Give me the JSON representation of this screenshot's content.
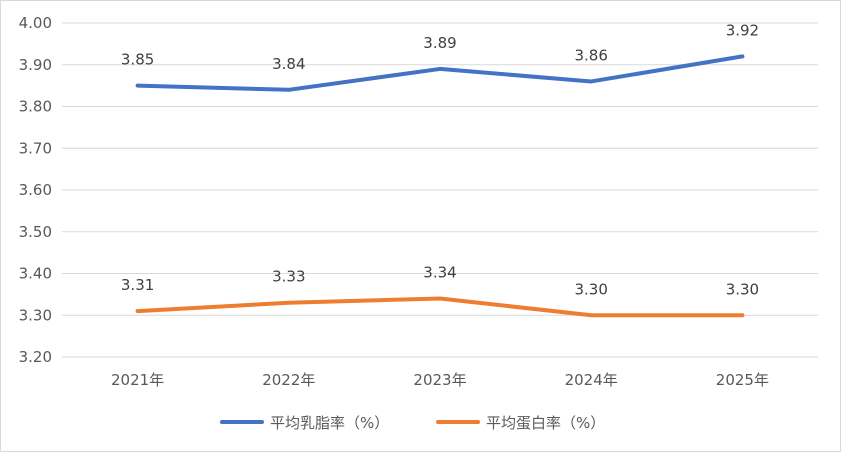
{
  "chart_data": {
    "type": "line",
    "categories": [
      "2021年",
      "2022年",
      "2023年",
      "2024年",
      "2025年"
    ],
    "series": [
      {
        "name": "平均乳脂率（%）",
        "values": [
          3.85,
          3.84,
          3.89,
          3.86,
          3.92
        ],
        "color": "#4472C4",
        "labels": [
          "3.85",
          "3.84",
          "3.89",
          "3.86",
          "3.92"
        ]
      },
      {
        "name": "平均蛋白率（%）",
        "values": [
          3.31,
          3.33,
          3.34,
          3.3,
          3.3
        ],
        "color": "#ED7D31",
        "labels": [
          "3.31",
          "3.33",
          "3.34",
          "3.30",
          "3.30"
        ]
      }
    ],
    "ylim": [
      3.2,
      4.0
    ],
    "yticks": [
      "3.20",
      "3.30",
      "3.40",
      "3.50",
      "3.60",
      "3.70",
      "3.80",
      "3.90",
      "4.00"
    ],
    "grid": true,
    "legend_position": "bottom",
    "gridline_color": "#d9d9d9"
  }
}
